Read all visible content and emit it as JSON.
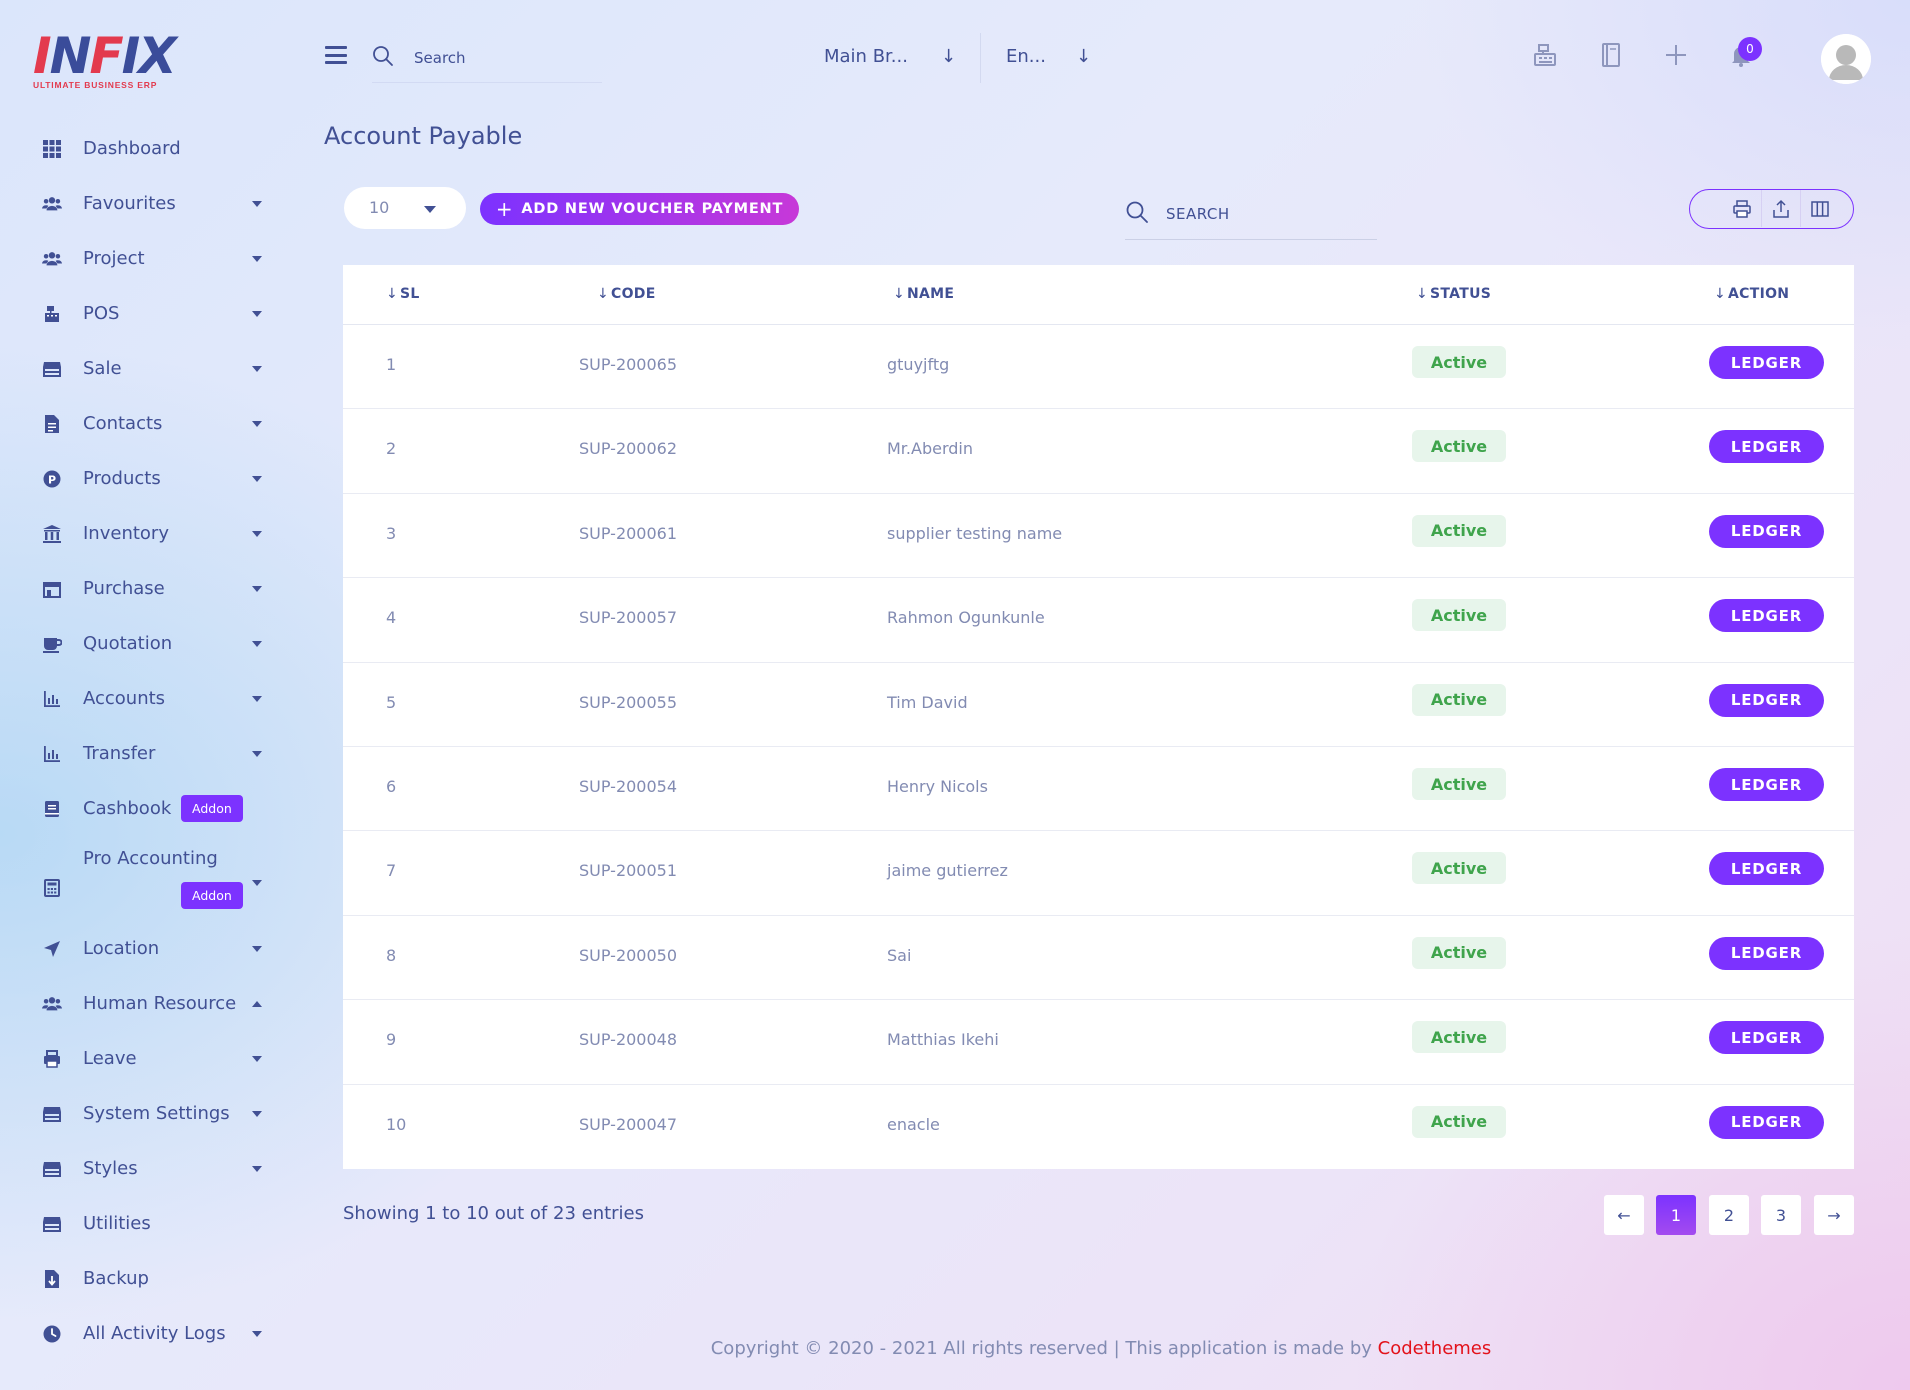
{
  "brand": {
    "logo_text": "INFIX",
    "logo_tagline": "ULTIMATE BUSINESS ERP",
    "accent": "#7c32ff",
    "logo_red": "#e33a4e",
    "logo_blue": "#3a4c9a"
  },
  "sidebar": {
    "items": [
      {
        "label": "Dashboard",
        "icon": "grid-icon",
        "caret": "none"
      },
      {
        "label": "Favourites",
        "icon": "users-icon",
        "caret": "down"
      },
      {
        "label": "Project",
        "icon": "users-icon",
        "caret": "down"
      },
      {
        "label": "POS",
        "icon": "cash-register-icon",
        "caret": "down"
      },
      {
        "label": "Sale",
        "icon": "store-icon",
        "caret": "down"
      },
      {
        "label": "Contacts",
        "icon": "document-icon",
        "caret": "down"
      },
      {
        "label": "Products",
        "icon": "product-p-icon",
        "caret": "down"
      },
      {
        "label": "Inventory",
        "icon": "bank-icon",
        "caret": "down"
      },
      {
        "label": "Purchase",
        "icon": "storefront-icon",
        "caret": "down"
      },
      {
        "label": "Quotation",
        "icon": "coffee-icon",
        "caret": "down"
      },
      {
        "label": "Accounts",
        "icon": "bar-chart-icon",
        "caret": "down"
      },
      {
        "label": "Transfer",
        "icon": "bar-chart-icon",
        "caret": "down"
      },
      {
        "label": "Cashbook",
        "icon": "book-icon",
        "caret": "none",
        "badge": "Addon"
      },
      {
        "label": "Pro Accounting",
        "icon": "calculator-icon",
        "caret": "down",
        "badge": "Addon"
      },
      {
        "label": "Location",
        "icon": "location-arrow-icon",
        "caret": "down"
      },
      {
        "label": "Human Resource",
        "icon": "users-icon",
        "caret": "up"
      },
      {
        "label": "Leave",
        "icon": "printer-icon",
        "caret": "down"
      },
      {
        "label": "System Settings",
        "icon": "store-icon",
        "caret": "down"
      },
      {
        "label": "Styles",
        "icon": "store-icon",
        "caret": "down"
      },
      {
        "label": "Utilities",
        "icon": "store-icon",
        "caret": "none"
      },
      {
        "label": "Backup",
        "icon": "file-download-icon",
        "caret": "none"
      },
      {
        "label": "All Activity Logs",
        "icon": "clock-icon",
        "caret": "down"
      }
    ]
  },
  "topbar": {
    "search_placeholder": "Search",
    "branch": "Main Br...",
    "language": "En...",
    "notification_count": "0"
  },
  "page": {
    "title": "Account Payable",
    "page_length": "10",
    "add_button": "ADD NEW VOUCHER PAYMENT",
    "search_placeholder": "SEARCH"
  },
  "table": {
    "columns": [
      "SL",
      "CODE",
      "NAME",
      "STATUS",
      "ACTION"
    ],
    "rows": [
      {
        "sl": "1",
        "code": "SUP-200065",
        "name": "gtuyjftg",
        "status": "Active",
        "action": "LEDGER"
      },
      {
        "sl": "2",
        "code": "SUP-200062",
        "name": "Mr.Aberdin",
        "status": "Active",
        "action": "LEDGER"
      },
      {
        "sl": "3",
        "code": "SUP-200061",
        "name": "supplier testing name",
        "status": "Active",
        "action": "LEDGER"
      },
      {
        "sl": "4",
        "code": "SUP-200057",
        "name": "Rahmon Ogunkunle",
        "status": "Active",
        "action": "LEDGER"
      },
      {
        "sl": "5",
        "code": "SUP-200055",
        "name": "Tim David",
        "status": "Active",
        "action": "LEDGER"
      },
      {
        "sl": "6",
        "code": "SUP-200054",
        "name": "Henry Nicols",
        "status": "Active",
        "action": "LEDGER"
      },
      {
        "sl": "7",
        "code": "SUP-200051",
        "name": "jaime gutierrez",
        "status": "Active",
        "action": "LEDGER"
      },
      {
        "sl": "8",
        "code": "SUP-200050",
        "name": "Sai",
        "status": "Active",
        "action": "LEDGER"
      },
      {
        "sl": "9",
        "code": "SUP-200048",
        "name": "Matthias Ikehi",
        "status": "Active",
        "action": "LEDGER"
      },
      {
        "sl": "10",
        "code": "SUP-200047",
        "name": "enacle",
        "status": "Active",
        "action": "LEDGER"
      }
    ]
  },
  "pagination": {
    "info": "Showing 1 to 10 out of 23 entries",
    "prev": "←",
    "pages": [
      "1",
      "2",
      "3"
    ],
    "current": "1",
    "next": "→"
  },
  "footer": {
    "text": "Copyright © 2020 - 2021 All rights reserved | This application is made by ",
    "brand": "Codethemes"
  }
}
